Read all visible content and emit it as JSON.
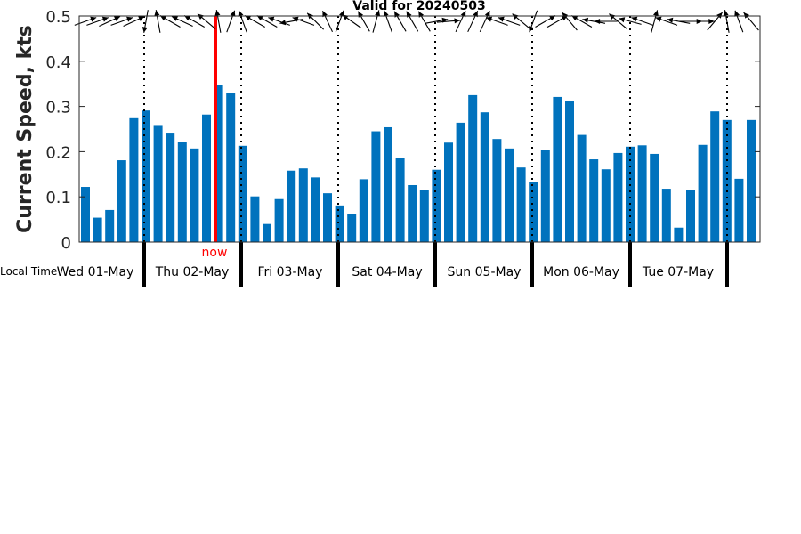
{
  "chart_data": {
    "type": "bar",
    "title": "Valid for 20240503",
    "ylabel": "Current Speed, kts",
    "xlabel": "Local Time",
    "ylim": [
      0,
      0.5
    ],
    "yticks": [
      "0",
      "0.1",
      "0.2",
      "0.3",
      "0.4",
      "0.5"
    ],
    "ytick_values": [
      0,
      0.1,
      0.2,
      0.3,
      0.4,
      0.5
    ],
    "days": [
      "Wed 01-May",
      "Thu 02-May",
      "Fri 03-May",
      "Sat 04-May",
      "Sun 05-May",
      "Mon 06-May",
      "Tue 07-May"
    ],
    "now_label": "now",
    "values": [
      0.122,
      0.054,
      0.071,
      0.181,
      0.274,
      0.291,
      0.257,
      0.242,
      0.222,
      0.207,
      0.282,
      0.347,
      0.329,
      0.213,
      0.101,
      0.04,
      0.095,
      0.158,
      0.163,
      0.143,
      0.108,
      0.081,
      0.062,
      0.139,
      0.245,
      0.254,
      0.187,
      0.126,
      0.116,
      0.16,
      0.22,
      0.264,
      0.325,
      0.287,
      0.228,
      0.207,
      0.165,
      0.133,
      0.203,
      0.321,
      0.311,
      0.237,
      0.183,
      0.161,
      0.197,
      0.211,
      0.214,
      0.195,
      0.118,
      0.032,
      0.115,
      0.215,
      0.289,
      0.27,
      0.14,
      0.27
    ],
    "directions_deg": [
      70,
      70,
      65,
      70,
      65,
      190,
      350,
      300,
      295,
      300,
      310,
      350,
      20,
      340,
      300,
      300,
      290,
      260,
      290,
      315,
      335,
      20,
      305,
      330,
      15,
      340,
      330,
      330,
      330,
      80,
      85,
      25,
      25,
      25,
      290,
      290,
      310,
      200,
      60,
      60,
      320,
      300,
      280,
      270,
      310,
      285,
      290,
      15,
      290,
      280,
      90,
      90,
      40,
      350,
      340,
      320
    ],
    "bar_color": "#0072BD",
    "now_color": "#ff0000",
    "grid": false
  }
}
